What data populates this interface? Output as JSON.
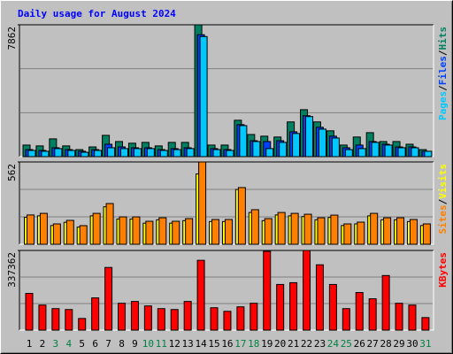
{
  "title": "Daily usage for August 2024",
  "separator": "/",
  "chart_data": [
    {
      "type": "bar",
      "ylim": [
        0,
        7862
      ],
      "yticks": [
        7862
      ],
      "grid": true,
      "series": [
        {
          "name": "Hits",
          "color": "#008060",
          "values": [
            690,
            640,
            1060,
            640,
            420,
            580,
            1270,
            900,
            800,
            850,
            640,
            850,
            850,
            7862,
            690,
            690,
            2170,
            1320,
            1220,
            1170,
            2070,
            2800,
            2070,
            1540,
            690,
            1170,
            1430,
            900,
            900,
            740,
            420
          ]
        },
        {
          "name": "Files",
          "color": "#0040ff",
          "values": [
            420,
            370,
            530,
            420,
            320,
            420,
            740,
            580,
            530,
            530,
            420,
            480,
            530,
            7270,
            480,
            420,
            1910,
            950,
            900,
            950,
            1480,
            2440,
            1750,
            1220,
            530,
            690,
            900,
            740,
            580,
            580,
            320
          ]
        },
        {
          "name": "Pages",
          "color": "#00c8ff",
          "values": [
            370,
            320,
            480,
            370,
            260,
            370,
            530,
            480,
            480,
            480,
            370,
            420,
            480,
            7160,
            420,
            370,
            1850,
            900,
            480,
            850,
            1380,
            2390,
            1640,
            1110,
            420,
            480,
            850,
            690,
            530,
            530,
            320
          ]
        }
      ]
    },
    {
      "type": "bar",
      "ylim": [
        0,
        562
      ],
      "yticks": [
        562
      ],
      "grid": true,
      "series": [
        {
          "name": "Visits",
          "color": "#ffff00",
          "values": [
            184,
            194,
            128,
            150,
            117,
            194,
            256,
            172,
            172,
            144,
            167,
            144,
            161,
            480,
            155,
            155,
            374,
            217,
            161,
            200,
            194,
            189,
            167,
            183,
            128,
            139,
            194,
            167,
            167,
            155,
            128
          ]
        },
        {
          "name": "Sites",
          "color": "#ff8000",
          "values": [
            200,
            211,
            139,
            163,
            127,
            211,
            278,
            187,
            187,
            157,
            181,
            157,
            175,
            562,
            169,
            169,
            387,
            236,
            175,
            217,
            211,
            205,
            181,
            199,
            139,
            151,
            211,
            181,
            181,
            169,
            139
          ]
        }
      ]
    },
    {
      "type": "bar",
      "ylim": [
        0,
        337362
      ],
      "yticks": [
        337362
      ],
      "grid": true,
      "categories": [
        "1",
        "2",
        "3",
        "4",
        "5",
        "6",
        "7",
        "8",
        "9",
        "10",
        "11",
        "12",
        "13",
        "14",
        "15",
        "16",
        "17",
        "18",
        "19",
        "20",
        "21",
        "22",
        "23",
        "24",
        "25",
        "26",
        "27",
        "28",
        "29",
        "30",
        "31"
      ],
      "category_colors": [
        "#000000",
        "#000000",
        "#008040",
        "#008040",
        "#000000",
        "#000000",
        "#000000",
        "#000000",
        "#000000",
        "#008040",
        "#008040",
        "#000000",
        "#000000",
        "#000000",
        "#000000",
        "#000000",
        "#008040",
        "#008040",
        "#000000",
        "#000000",
        "#000000",
        "#000000",
        "#000000",
        "#008040",
        "#008040",
        "#000000",
        "#000000",
        "#000000",
        "#000000",
        "#000000",
        "#008040"
      ],
      "series": [
        {
          "name": "KBytes",
          "color": "#ff0000",
          "values": [
            155390,
            106120,
            90960,
            87170,
            49270,
            136440,
            265300,
            113700,
            121280,
            102330,
            90960,
            87170,
            121280,
            295620,
            94750,
            79590,
            98540,
            113700,
            333520,
            193290,
            200870,
            337362,
            276670,
            193290,
            90960,
            159180,
            132650,
            231190,
            113700,
            106120,
            53060
          ]
        }
      ]
    }
  ]
}
